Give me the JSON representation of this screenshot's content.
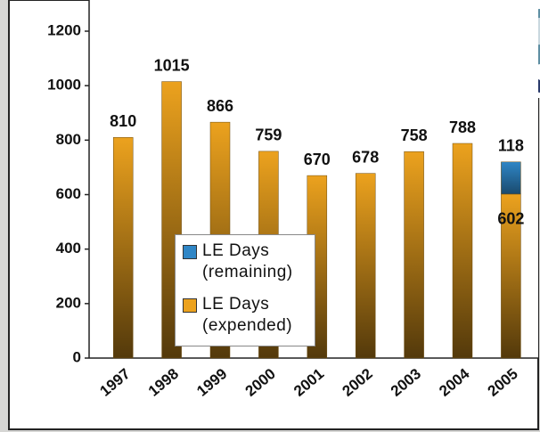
{
  "chart_data": {
    "type": "stacked-bar",
    "categories": [
      "1997",
      "1998",
      "1999",
      "2000",
      "2001",
      "2002",
      "2003",
      "2004",
      "2005"
    ],
    "series": [
      {
        "name": "LE Days (expended)",
        "color": "#eca21e",
        "values": [
          810,
          1015,
          866,
          759,
          670,
          678,
          758,
          788,
          602
        ]
      },
      {
        "name": "LE Days (remaining)",
        "color": "#2f86c6",
        "values": [
          null,
          null,
          null,
          null,
          null,
          null,
          null,
          null,
          118
        ]
      }
    ],
    "ylim": [
      0,
      1200
    ],
    "yticks": [
      0,
      200,
      400,
      600,
      800,
      1000,
      1200
    ]
  }
}
